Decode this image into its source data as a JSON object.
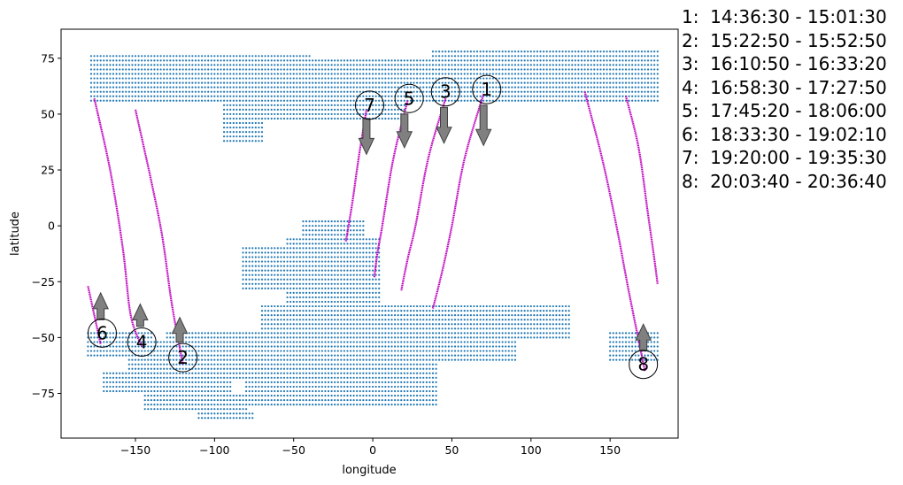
{
  "chart_data": {
    "type": "scatter",
    "xlabel": "longitude",
    "ylabel": "latitude",
    "xlim": [
      -197,
      193
    ],
    "ylim": [
      -95,
      88
    ],
    "xticks": [
      -150,
      -100,
      -50,
      0,
      50,
      100,
      150
    ],
    "yticks": [
      -75,
      -50,
      -25,
      0,
      25,
      50,
      75
    ],
    "xtick_labels": [
      "−150",
      "−100",
      "−50",
      "0",
      "50",
      "100",
      "150"
    ],
    "ytick_labels": [
      "−75",
      "−50",
      "−25",
      "0",
      "25",
      "50",
      "75"
    ],
    "grid": false,
    "colors": {
      "land_points": "#1f77b4",
      "tracks": "#c000c0",
      "arrows": "#808080"
    },
    "land_point_spacing_deg": 2,
    "land_regions": [
      {
        "lon": [
          -178,
          -40
        ],
        "lat": [
          55,
          76
        ]
      },
      {
        "lon": [
          -40,
          38
        ],
        "lat": [
          57,
          74
        ]
      },
      {
        "lon": [
          38,
          180
        ],
        "lat": [
          55,
          78
        ]
      },
      {
        "lon": [
          -70,
          20
        ],
        "lat": [
          48,
          57
        ]
      },
      {
        "lon": [
          -95,
          -70
        ],
        "lat": [
          38,
          55
        ]
      },
      {
        "lon": [
          -5,
          45
        ],
        "lat": [
          55,
          62
        ]
      },
      {
        "lon": [
          -45,
          -5
        ],
        "lat": [
          -10,
          3
        ]
      },
      {
        "lon": [
          -82,
          -18
        ],
        "lat": [
          -28,
          -10
        ]
      },
      {
        "lon": [
          -55,
          5
        ],
        "lat": [
          -35,
          -5
        ]
      },
      {
        "lon": [
          -70,
          125
        ],
        "lat": [
          -48,
          -35
        ]
      },
      {
        "lon": [
          -30,
          125
        ],
        "lat": [
          -50,
          -40
        ]
      },
      {
        "lon": [
          -130,
          -20
        ],
        "lat": [
          -55,
          -48
        ]
      },
      {
        "lon": [
          -180,
          -140
        ],
        "lat": [
          -58,
          -48
        ]
      },
      {
        "lon": [
          -160,
          -30
        ],
        "lat": [
          -58,
          -52
        ]
      },
      {
        "lon": [
          -155,
          -50
        ],
        "lat": [
          -68,
          -58
        ]
      },
      {
        "lon": [
          -170,
          -90
        ],
        "lat": [
          -75,
          -65
        ]
      },
      {
        "lon": [
          -145,
          -80
        ],
        "lat": [
          -83,
          -75
        ]
      },
      {
        "lon": [
          -110,
          -75
        ],
        "lat": [
          -87,
          -83
        ]
      },
      {
        "lon": [
          -50,
          40
        ],
        "lat": [
          -80,
          -52
        ]
      },
      {
        "lon": [
          -80,
          -40
        ],
        "lat": [
          -80,
          -66
        ]
      },
      {
        "lon": [
          10,
          90
        ],
        "lat": [
          -60,
          -52
        ]
      },
      {
        "lon": [
          150,
          180
        ],
        "lat": [
          -60,
          -48
        ]
      }
    ],
    "tracks": [
      {
        "id": "1",
        "time": "14:36:30 - 15:01:30",
        "direction": "south",
        "points": [
          [
            70,
            59
          ],
          [
            58,
            30
          ],
          [
            50,
            0
          ],
          [
            44,
            -20
          ],
          [
            38,
            -37
          ]
        ],
        "circle": [
          72,
          61
        ],
        "arrow_base": [
          70,
          54
        ],
        "arrow_tip": [
          70,
          36
        ]
      },
      {
        "id": "2",
        "time": "15:22:50 - 15:52:50",
        "direction": "north",
        "points": [
          [
            -150,
            52
          ],
          [
            -140,
            20
          ],
          [
            -133,
            -5
          ],
          [
            -127,
            -35
          ],
          [
            -120,
            -62
          ]
        ],
        "circle": [
          -120,
          -59
        ],
        "arrow_base": [
          -122,
          -52
        ],
        "arrow_tip": [
          -122,
          -41
        ]
      },
      {
        "id": "3",
        "time": "16:10:50 - 16:33:20",
        "direction": "south",
        "points": [
          [
            46,
            57
          ],
          [
            35,
            30
          ],
          [
            27,
            0
          ],
          [
            22,
            -15
          ],
          [
            18,
            -29
          ]
        ],
        "circle": [
          46,
          60
        ],
        "arrow_base": [
          45,
          53
        ],
        "arrow_tip": [
          45,
          37
        ]
      },
      {
        "id": "4",
        "time": "16:58:30 - 17:27:50",
        "direction": "north",
        "points": [
          [
            -176,
            57
          ],
          [
            -166,
            25
          ],
          [
            -158,
            -10
          ],
          [
            -153,
            -40
          ],
          [
            -146,
            -54
          ]
        ],
        "circle": [
          -146,
          -52
        ],
        "arrow_base": [
          -147,
          -45
        ],
        "arrow_tip": [
          -147,
          -35
        ]
      },
      {
        "id": "5",
        "time": "17:45:20 - 18:06:00",
        "direction": "south",
        "points": [
          [
            22,
            56
          ],
          [
            13,
            30
          ],
          [
            6,
            0
          ],
          [
            3,
            -12
          ],
          [
            1,
            -23
          ]
        ],
        "circle": [
          23,
          57
        ],
        "arrow_base": [
          20,
          50
        ],
        "arrow_tip": [
          20,
          35
        ]
      },
      {
        "id": "6",
        "time": "18:33:30 - 19:02:10",
        "direction": "north",
        "points": [
          [
            -180,
            -27
          ],
          [
            -176,
            -40
          ],
          [
            -172,
            -53
          ]
        ],
        "circle": [
          -171,
          -48
        ],
        "arrow_base": [
          -172,
          -42
        ],
        "arrow_tip": [
          -172,
          -30
        ]
      },
      {
        "id": "7",
        "time": "19:20:00 - 19:35:30",
        "direction": "south",
        "points": [
          [
            -4,
            52
          ],
          [
            -9,
            30
          ],
          [
            -13,
            10
          ],
          [
            -17,
            -7
          ]
        ],
        "circle": [
          -2,
          54
        ],
        "arrow_base": [
          -4,
          48
        ],
        "arrow_tip": [
          -4,
          32
        ]
      },
      {
        "id": "8",
        "time": "20:03:40 - 20:36:40",
        "direction": "north",
        "points": [
          [
            134,
            60
          ],
          [
            145,
            30
          ],
          [
            154,
            0
          ],
          [
            162,
            -30
          ],
          [
            172,
            -65
          ]
        ],
        "points_b": [
          [
            160,
            58
          ],
          [
            168,
            35
          ],
          [
            174,
            5
          ],
          [
            178,
            -15
          ],
          [
            180,
            -26
          ]
        ],
        "circle": [
          171,
          -62
        ],
        "arrow_base": [
          171,
          -56
        ],
        "arrow_tip": [
          171,
          -44
        ]
      }
    ]
  },
  "legend_items": [
    "1:  14:36:30 - 15:01:30",
    "2:  15:22:50 - 15:52:50",
    "3:  16:10:50 - 16:33:20",
    "4:  16:58:30 - 17:27:50",
    "5:  17:45:20 - 18:06:00",
    "6:  18:33:30 - 19:02:10",
    "7:  19:20:00 - 19:35:30",
    "8:  20:03:40 - 20:36:40"
  ]
}
